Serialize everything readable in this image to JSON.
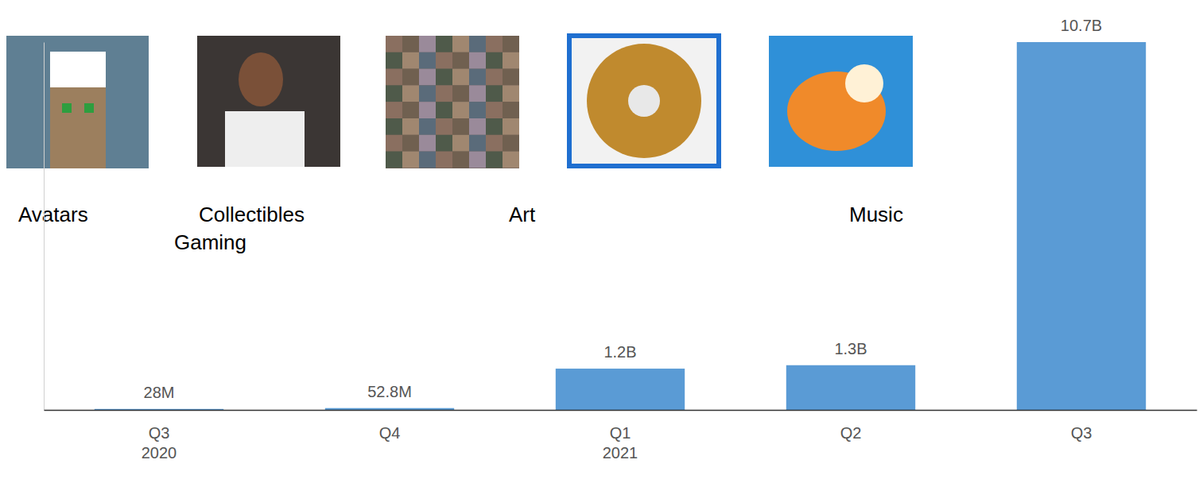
{
  "chart_data": {
    "type": "bar",
    "categories": [
      "Q3 2020",
      "Q4",
      "Q1 2021",
      "Q2",
      "Q3"
    ],
    "values": [
      28,
      52.8,
      1200,
      1300,
      10700
    ],
    "value_labels": [
      "28M",
      "52.8M",
      "1.2B",
      "1.3B",
      "10.7B"
    ],
    "data_labels": true,
    "color": "#5a9bd5",
    "ylim": [
      0,
      10700
    ],
    "tick_labels": "x",
    "grid": false,
    "annotations": [
      "Avatars",
      "Collectibles",
      "Gaming",
      "Art",
      "Music"
    ]
  }
}
